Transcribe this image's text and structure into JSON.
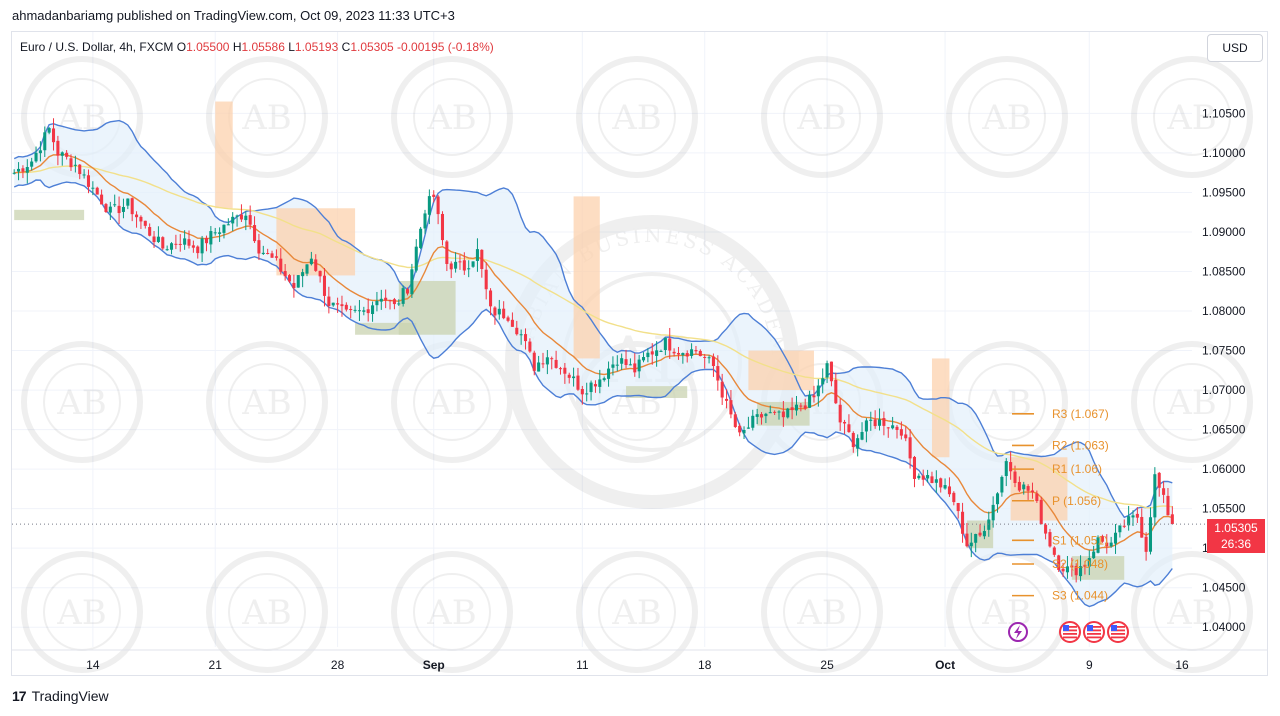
{
  "publish_info": "ahmadanbariamg published on TradingView.com, Oct 09, 2023 11:33 UTC+3",
  "header": {
    "symbol": "Euro / U.S. Dollar, 4h, FXCM",
    "open_label": "O",
    "open": "1.05500",
    "high_label": "H",
    "high": "1.05586",
    "low_label": "L",
    "low": "1.05193",
    "close_label": "C",
    "close": "1.05305",
    "change": "-0.00195 (-0.18%)"
  },
  "currency_button": "USD",
  "last_price": {
    "price": "1.05305",
    "countdown": "26:36",
    "value": 1.05305
  },
  "footer": {
    "logo_icon": "17",
    "brand": "TradingView"
  },
  "watermark_text": "AB",
  "watermark_big_text": "ARABIAN BUSINESS ACADEMY",
  "colors": {
    "up": "#089981",
    "down": "#f23645",
    "band": "#4d7fd6",
    "band_fill": "#e3f0fb",
    "ema_fast": "#e8883a",
    "ema_slow": "#f2e08a",
    "pivot": "#e8922d",
    "supply": "#fcd2ad",
    "demand": "#c9d3b0"
  },
  "chart_data": {
    "type": "candlestick",
    "timeframe": "4h",
    "x_ticks": [
      "14",
      "21",
      "28",
      "Sep",
      "11",
      "18",
      "25",
      "Oct",
      "9",
      "16"
    ],
    "y_ticks": [
      "1.10500",
      "1.10000",
      "1.09500",
      "1.09000",
      "1.08500",
      "1.08000",
      "1.07500",
      "1.07000",
      "1.06500",
      "1.06000",
      "1.05500",
      "1.05000",
      "1.04500",
      "1.04000"
    ],
    "ylim": [
      1.0375,
      1.1115
    ],
    "last_close": 1.05305,
    "pivot_levels": [
      {
        "label": "R3 (1.067)",
        "value": 1.067
      },
      {
        "label": "R2 (1.063)",
        "value": 1.063
      },
      {
        "label": "R1 (1.06)",
        "value": 1.06
      },
      {
        "label": "P (1.056)",
        "value": 1.056
      },
      {
        "label": "S1 (1.051)",
        "value": 1.051
      },
      {
        "label": "S2 (1.048)",
        "value": 1.048
      },
      {
        "label": "S3 (1.044)",
        "value": 1.044
      }
    ],
    "price_path": [
      [
        0,
        1.0975
      ],
      [
        4,
        1.099
      ],
      [
        8,
        1.103
      ],
      [
        10,
        1.1
      ],
      [
        14,
        1.0985
      ],
      [
        18,
        1.0955
      ],
      [
        22,
        1.0925
      ],
      [
        26,
        1.0935
      ],
      [
        30,
        1.0905
      ],
      [
        34,
        1.088
      ],
      [
        38,
        1.089
      ],
      [
        42,
        1.088
      ],
      [
        46,
        1.09
      ],
      [
        50,
        1.0915
      ],
      [
        53,
        1.0925
      ],
      [
        56,
        1.088
      ],
      [
        60,
        1.086
      ],
      [
        64,
        1.083
      ],
      [
        68,
        1.087
      ],
      [
        72,
        1.081
      ],
      [
        76,
        1.0795
      ],
      [
        80,
        1.08
      ],
      [
        84,
        1.082
      ],
      [
        87,
        1.0805
      ],
      [
        90,
        1.083
      ],
      [
        94,
        1.093
      ],
      [
        96,
        1.0945
      ],
      [
        99,
        1.086
      ],
      [
        103,
        1.0855
      ],
      [
        106,
        1.0875
      ],
      [
        109,
        1.08
      ],
      [
        113,
        1.0795
      ],
      [
        116,
        1.077
      ],
      [
        119,
        1.073
      ],
      [
        122,
        1.0745
      ],
      [
        126,
        1.0725
      ],
      [
        130,
        1.07
      ],
      [
        134,
        1.0715
      ],
      [
        138,
        1.074
      ],
      [
        142,
        1.0725
      ],
      [
        145,
        1.0745
      ],
      [
        149,
        1.076
      ],
      [
        152,
        1.075
      ],
      [
        156,
        1.075
      ],
      [
        160,
        1.073
      ],
      [
        163,
        1.068
      ],
      [
        166,
        1.064
      ],
      [
        169,
        1.066
      ],
      [
        172,
        1.067
      ],
      [
        176,
        1.0665
      ],
      [
        180,
        1.068
      ],
      [
        183,
        1.069
      ],
      [
        186,
        1.073
      ],
      [
        189,
        1.066
      ],
      [
        192,
        1.0635
      ],
      [
        196,
        1.066
      ],
      [
        199,
        1.066
      ],
      [
        203,
        1.065
      ],
      [
        206,
        1.0595
      ],
      [
        209,
        1.059
      ],
      [
        212,
        1.058
      ],
      [
        215,
        1.056
      ],
      [
        218,
        1.0505
      ],
      [
        221,
        1.0515
      ],
      [
        224,
        1.0555
      ],
      [
        227,
        1.061
      ],
      [
        230,
        1.058
      ],
      [
        233,
        1.057
      ],
      [
        236,
        1.052
      ],
      [
        239,
        1.048
      ],
      [
        242,
        1.047
      ],
      [
        245,
        1.048
      ],
      [
        248,
        1.051
      ],
      [
        251,
        1.0505
      ],
      [
        254,
        1.053
      ],
      [
        257,
        1.054
      ],
      [
        259,
        1.05
      ],
      [
        261,
        1.059
      ],
      [
        263,
        1.056
      ],
      [
        265,
        1.05305
      ]
    ]
  }
}
